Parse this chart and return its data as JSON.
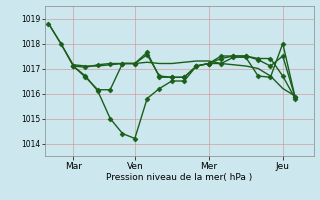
{
  "background_color": "#cce8ee",
  "line_color": "#1a5e1a",
  "title": "Pression niveau de la mer( hPa )",
  "ylim": [
    1013.5,
    1019.5
  ],
  "yticks": [
    1014,
    1015,
    1016,
    1017,
    1018,
    1019
  ],
  "xtick_labels": [
    "Mar",
    "Ven",
    "Mer",
    "Jeu"
  ],
  "xtick_positions": [
    2,
    7,
    13,
    19
  ],
  "vline_positions": [
    2,
    7,
    13,
    19
  ],
  "xlim": [
    -0.3,
    21.5
  ],
  "series": [
    {
      "x": [
        0,
        1,
        2,
        3,
        4,
        5,
        6,
        7,
        8,
        9,
        10,
        11,
        12,
        13,
        14,
        15,
        16,
        17,
        18,
        19,
        20
      ],
      "y": [
        1018.8,
        1018.0,
        1017.15,
        1017.1,
        1017.1,
        1017.15,
        1017.2,
        1017.2,
        1017.25,
        1017.2,
        1017.2,
        1017.25,
        1017.3,
        1017.3,
        1017.2,
        1017.15,
        1017.1,
        1017.0,
        1016.7,
        1016.2,
        1015.9
      ],
      "marker": null,
      "linestyle": "-",
      "linewidth": 1.0
    },
    {
      "x": [
        0,
        1,
        2,
        3,
        4,
        5,
        6,
        7,
        8,
        9,
        10,
        11,
        12,
        13,
        14,
        15,
        16,
        17,
        18,
        19,
        20
      ],
      "y": [
        1018.8,
        1018.0,
        1017.1,
        1016.7,
        1016.1,
        1015.0,
        1014.4,
        1014.2,
        1015.8,
        1016.2,
        1016.5,
        1016.5,
        1017.1,
        1017.2,
        1017.5,
        1017.5,
        1017.5,
        1017.4,
        1017.4,
        1016.7,
        1015.8
      ],
      "marker": "D",
      "linestyle": "-",
      "linewidth": 1.0
    },
    {
      "x": [
        2,
        3,
        4,
        5,
        6,
        7,
        8,
        9,
        10,
        11,
        12,
        13,
        14,
        15,
        16,
        17,
        18,
        19,
        20
      ],
      "y": [
        1017.1,
        1017.05,
        1017.15,
        1017.2,
        1017.2,
        1017.2,
        1017.55,
        1016.7,
        1016.65,
        1016.65,
        1017.1,
        1017.2,
        1017.4,
        1017.5,
        1017.5,
        1017.35,
        1017.1,
        1017.5,
        1015.85
      ],
      "marker": "D",
      "linestyle": "-",
      "linewidth": 1.0
    },
    {
      "x": [
        2,
        3,
        4,
        5,
        6,
        7,
        8,
        9,
        10,
        11,
        12,
        13,
        14,
        15,
        16,
        17,
        18,
        19,
        20
      ],
      "y": [
        1017.1,
        1016.65,
        1016.15,
        1016.15,
        1017.2,
        1017.2,
        1017.65,
        1016.65,
        1016.65,
        1016.65,
        1017.1,
        1017.2,
        1017.2,
        1017.45,
        1017.45,
        1016.7,
        1016.65,
        1018.0,
        1015.85
      ],
      "marker": "D",
      "linestyle": "-",
      "linewidth": 1.0
    }
  ]
}
